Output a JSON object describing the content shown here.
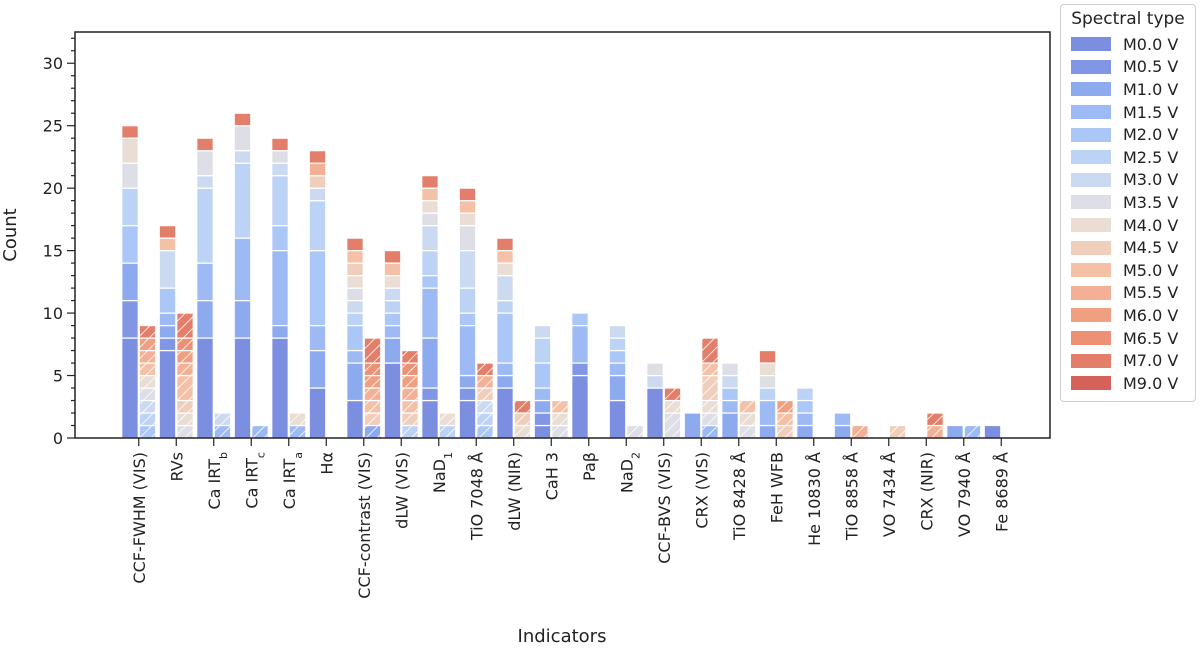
{
  "chart_data": {
    "type": "bar",
    "stacked": true,
    "xlabel": "Indicators",
    "ylabel": "Count",
    "ylim": [
      0,
      32.5
    ],
    "yticks": [
      0,
      5,
      10,
      15,
      20,
      25,
      30
    ],
    "grid": false,
    "legend": {
      "title": "Spectral type",
      "position": "right"
    },
    "spectral_types": [
      "M0.0 V",
      "M0.5 V",
      "M1.0 V",
      "M1.5 V",
      "M2.0 V",
      "M2.5 V",
      "M3.0 V",
      "M3.5 V",
      "M4.0 V",
      "M4.5 V",
      "M5.0 V",
      "M5.5 V",
      "M6.0 V",
      "M6.5 V",
      "M7.0 V",
      "M9.0 V"
    ],
    "colors": [
      "#7b8edf",
      "#8197e5",
      "#8eaaef",
      "#9dbaf5",
      "#aac7f7",
      "#bcd3f6",
      "#ccdaf1",
      "#dddee6",
      "#e9ddd4",
      "#efcfbc",
      "#f4c0a6",
      "#f4b096",
      "#f0a080",
      "#ec9076",
      "#e37e6a",
      "#d4625b"
    ],
    "categories": [
      "CCF-FWHM (VIS)",
      "RVs",
      "Ca IRT_b",
      "Ca IRT_c",
      "Ca IRT_a",
      "Hα",
      "CCF-contrast (VIS)",
      "dLW (VIS)",
      "NaD_1",
      "TiO 7048 Å",
      "dLW (NIR)",
      "CaH 3",
      "Paβ",
      "NaD_2",
      "CCF-BVS (VIS)",
      "CRX (VIS)",
      "TiO 8428 Å",
      "FeH WFB",
      "He 10830 Å",
      "TiO 8858 Å",
      "VO 7434 Å",
      "CRX (NIR)",
      "VO 7940 Å",
      "Fe 8689 Å"
    ],
    "category_labels": [
      {
        "main": "CCF-FWHM (VIS)",
        "sub": ""
      },
      {
        "main": "RVs",
        "sub": ""
      },
      {
        "main": "Ca IRT",
        "sub": "b"
      },
      {
        "main": "Ca IRT",
        "sub": "c"
      },
      {
        "main": "Ca IRT",
        "sub": "a"
      },
      {
        "main": "Hα",
        "sub": ""
      },
      {
        "main": "CCF-contrast (VIS)",
        "sub": ""
      },
      {
        "main": "dLW (VIS)",
        "sub": ""
      },
      {
        "main": "NaD",
        "sub": "1"
      },
      {
        "main": "TiO 7048 Å",
        "sub": ""
      },
      {
        "main": "dLW (NIR)",
        "sub": ""
      },
      {
        "main": "CaH 3",
        "sub": ""
      },
      {
        "main": "Paβ",
        "sub": ""
      },
      {
        "main": "NaD",
        "sub": "2"
      },
      {
        "main": "CCF-BVS (VIS)",
        "sub": ""
      },
      {
        "main": "CRX (VIS)",
        "sub": ""
      },
      {
        "main": "TiO 8428 Å",
        "sub": ""
      },
      {
        "main": "FeH WFB",
        "sub": ""
      },
      {
        "main": "He 10830 Å",
        "sub": ""
      },
      {
        "main": "TiO 8858 Å",
        "sub": ""
      },
      {
        "main": "VO 7434 Å",
        "sub": ""
      },
      {
        "main": "CRX (NIR)",
        "sub": ""
      },
      {
        "main": "VO 7940 Å",
        "sub": ""
      },
      {
        "main": "Fe 8689 Å",
        "sub": ""
      }
    ],
    "series": [
      {
        "pattern": "solid",
        "values": [
          [
            8,
            3,
            3,
            0,
            3,
            3,
            0,
            2,
            2,
            0,
            0,
            0,
            0,
            0,
            1,
            0
          ],
          [
            7,
            1,
            1,
            1,
            2,
            0,
            3,
            0,
            0,
            0,
            1,
            0,
            0,
            0,
            1,
            0
          ],
          [
            8,
            0,
            3,
            3,
            0,
            6,
            1,
            2,
            0,
            0,
            0,
            0,
            0,
            0,
            1,
            0
          ],
          [
            8,
            0,
            3,
            5,
            0,
            6,
            1,
            2,
            0,
            0,
            0,
            0,
            0,
            0,
            1,
            0
          ],
          [
            8,
            0,
            1,
            6,
            2,
            4,
            1,
            1,
            0,
            0,
            0,
            0,
            0,
            0,
            1,
            0
          ],
          [
            4,
            0,
            3,
            2,
            6,
            4,
            1,
            0,
            0,
            1,
            0,
            1,
            0,
            0,
            1,
            0
          ],
          [
            3,
            0,
            3,
            1,
            2,
            1,
            1,
            1,
            1,
            1,
            1,
            0,
            0,
            0,
            1,
            0
          ],
          [
            6,
            0,
            2,
            1,
            1,
            1,
            1,
            0,
            1,
            0,
            1,
            0,
            0,
            0,
            1,
            0
          ],
          [
            3,
            1,
            4,
            4,
            1,
            2,
            2,
            1,
            1,
            0,
            1,
            0,
            0,
            0,
            1,
            0
          ],
          [
            3,
            1,
            1,
            4,
            1,
            2,
            3,
            2,
            1,
            0,
            1,
            0,
            0,
            0,
            1,
            0
          ],
          [
            4,
            0,
            1,
            1,
            4,
            1,
            2,
            0,
            1,
            0,
            1,
            0,
            0,
            0,
            1,
            0
          ],
          [
            1,
            1,
            1,
            1,
            2,
            2,
            1,
            0,
            0,
            0,
            0,
            0,
            0,
            0,
            0,
            0
          ],
          [
            5,
            1,
            0,
            3,
            1,
            0,
            0,
            0,
            0,
            0,
            0,
            0,
            0,
            0,
            0,
            0
          ],
          [
            3,
            0,
            2,
            1,
            1,
            1,
            1,
            0,
            0,
            0,
            0,
            0,
            0,
            0,
            0,
            0
          ],
          [
            4,
            0,
            0,
            0,
            0,
            0,
            1,
            1,
            0,
            0,
            0,
            0,
            0,
            0,
            0,
            0
          ],
          [
            0,
            0,
            2,
            0,
            0,
            0,
            0,
            0,
            0,
            0,
            0,
            0,
            0,
            0,
            0,
            0
          ],
          [
            0,
            0,
            2,
            1,
            1,
            0,
            1,
            1,
            0,
            0,
            0,
            0,
            0,
            0,
            0,
            0
          ],
          [
            0,
            0,
            1,
            2,
            0,
            1,
            0,
            1,
            1,
            0,
            0,
            0,
            0,
            0,
            1,
            0
          ],
          [
            0,
            0,
            1,
            1,
            1,
            1,
            0,
            0,
            0,
            0,
            0,
            0,
            0,
            0,
            0,
            0
          ],
          [
            0,
            0,
            1,
            1,
            0,
            0,
            0,
            0,
            0,
            0,
            0,
            0,
            0,
            0,
            0,
            0
          ],
          [
            0,
            0,
            0,
            0,
            0,
            0,
            0,
            0,
            0,
            0,
            0,
            0,
            0,
            0,
            0,
            0
          ],
          [
            0,
            0,
            0,
            0,
            0,
            0,
            0,
            0,
            0,
            0,
            0,
            0,
            0,
            0,
            0,
            0
          ],
          [
            0,
            0,
            1,
            0,
            0,
            0,
            0,
            0,
            0,
            0,
            0,
            0,
            0,
            0,
            0,
            0
          ],
          [
            1,
            0,
            0,
            0,
            0,
            0,
            0,
            0,
            0,
            0,
            0,
            0,
            0,
            0,
            0,
            0
          ]
        ]
      },
      {
        "pattern": "hatched",
        "values": [
          [
            0,
            0,
            0,
            0,
            1,
            1,
            1,
            1,
            1,
            0,
            1,
            1,
            1,
            0,
            1,
            0
          ],
          [
            0,
            0,
            0,
            0,
            0,
            0,
            0,
            1,
            1,
            1,
            2,
            1,
            1,
            1,
            2,
            0
          ],
          [
            0,
            0,
            0,
            1,
            0,
            0,
            1,
            0,
            0,
            0,
            0,
            0,
            0,
            0,
            0,
            0
          ],
          [
            0,
            0,
            0,
            1,
            0,
            0,
            0,
            0,
            0,
            0,
            0,
            0,
            0,
            0,
            0,
            0
          ],
          [
            0,
            0,
            0,
            1,
            0,
            0,
            0,
            0,
            1,
            0,
            0,
            0,
            0,
            0,
            0,
            0
          ],
          [
            0,
            0,
            0,
            0,
            0,
            0,
            0,
            0,
            0,
            0,
            0,
            0,
            0,
            0,
            0,
            0
          ],
          [
            0,
            0,
            1,
            0,
            0,
            0,
            0,
            0,
            0,
            1,
            1,
            1,
            1,
            1,
            2,
            0
          ],
          [
            0,
            0,
            0,
            0,
            0,
            1,
            0,
            0,
            0,
            1,
            1,
            1,
            1,
            1,
            1,
            0
          ],
          [
            0,
            0,
            0,
            0,
            0,
            1,
            0,
            0,
            1,
            0,
            0,
            0,
            0,
            0,
            0,
            0
          ],
          [
            0,
            0,
            0,
            0,
            1,
            1,
            1,
            0,
            0,
            1,
            0,
            1,
            0,
            0,
            1,
            0
          ],
          [
            0,
            0,
            0,
            0,
            0,
            0,
            0,
            0,
            1,
            1,
            0,
            0,
            0,
            0,
            1,
            0
          ],
          [
            0,
            0,
            0,
            0,
            0,
            0,
            0,
            1,
            1,
            0,
            1,
            0,
            0,
            0,
            0,
            0
          ],
          [
            0,
            0,
            0,
            0,
            0,
            0,
            0,
            0,
            0,
            0,
            0,
            0,
            0,
            0,
            0,
            0
          ],
          [
            0,
            0,
            0,
            0,
            0,
            0,
            0,
            1,
            0,
            0,
            0,
            0,
            0,
            0,
            0,
            0
          ],
          [
            0,
            0,
            0,
            0,
            0,
            0,
            0,
            2,
            1,
            0,
            0,
            0,
            0,
            0,
            1,
            0
          ],
          [
            0,
            0,
            0,
            1,
            0,
            0,
            0,
            1,
            1,
            2,
            1,
            0,
            0,
            0,
            2,
            0
          ],
          [
            0,
            0,
            0,
            0,
            0,
            0,
            0,
            1,
            1,
            0,
            1,
            0,
            0,
            0,
            0,
            0
          ],
          [
            0,
            0,
            0,
            0,
            0,
            0,
            0,
            0,
            0,
            1,
            1,
            0,
            1,
            0,
            0,
            0
          ],
          [
            0,
            0,
            0,
            0,
            0,
            0,
            0,
            0,
            0,
            0,
            0,
            0,
            0,
            0,
            0,
            0
          ],
          [
            0,
            0,
            0,
            0,
            0,
            0,
            0,
            0,
            0,
            0,
            0,
            1,
            0,
            0,
            0,
            0
          ],
          [
            0,
            0,
            0,
            0,
            0,
            0,
            0,
            0,
            0,
            1,
            0,
            0,
            0,
            0,
            0,
            0
          ],
          [
            0,
            0,
            0,
            0,
            0,
            0,
            0,
            0,
            0,
            0,
            0,
            1,
            0,
            0,
            1,
            0
          ],
          [
            0,
            0,
            0,
            1,
            0,
            0,
            0,
            0,
            0,
            0,
            0,
            0,
            0,
            0,
            0,
            0
          ],
          [
            0,
            0,
            0,
            0,
            0,
            0,
            0,
            0,
            0,
            0,
            0,
            0,
            0,
            0,
            0,
            0
          ]
        ]
      }
    ]
  }
}
